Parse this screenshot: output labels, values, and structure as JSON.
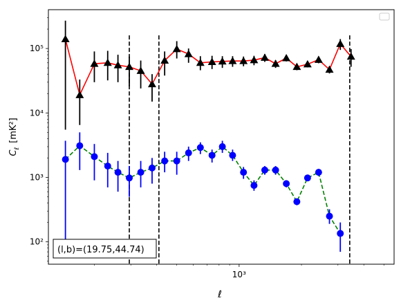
{
  "chart_data": {
    "type": "scatter",
    "xlabel": "ℓ",
    "ylabel_main": "C",
    "ylabel_sub": "ℓ",
    "ylabel_unit": "[mK²]",
    "x_scale": "log",
    "y_scale": "log",
    "xlim": [
      120,
      5600
    ],
    "ylim": [
      45,
      400000
    ],
    "x_ticks": [
      {
        "value": 1000,
        "label": "10³"
      }
    ],
    "y_ticks": [
      {
        "value": 100,
        "label": "10²"
      },
      {
        "value": 1000,
        "label": "10³"
      },
      {
        "value": 10000,
        "label": "10⁴"
      },
      {
        "value": 100000,
        "label": "10⁵"
      }
    ],
    "vlines": [
      295,
      410,
      3420
    ],
    "annotation": "(l,b)=(19.75,44.74)",
    "legend": "top-right",
    "series": [
      {
        "color": "#ff0000",
        "marker": "triangle",
        "marker_color": "#000000",
        "errorbar_color": "#000000",
        "line_style": "solid",
        "points": [
          {
            "x": 145,
            "y": 140000,
            "lo": 5500,
            "hi": 270000
          },
          {
            "x": 170,
            "y": 19000,
            "lo": 6500,
            "hi": 33000
          },
          {
            "x": 200,
            "y": 58000,
            "lo": 30000,
            "hi": 90000
          },
          {
            "x": 232,
            "y": 60000,
            "lo": 32000,
            "hi": 92000
          },
          {
            "x": 260,
            "y": 55000,
            "lo": 30000,
            "hi": 80000
          },
          {
            "x": 295,
            "y": 52000,
            "lo": 26000,
            "hi": 75000
          },
          {
            "x": 335,
            "y": 45000,
            "lo": 24000,
            "hi": 65000
          },
          {
            "x": 380,
            "y": 28000,
            "lo": 15000,
            "hi": 40000
          },
          {
            "x": 437,
            "y": 65000,
            "lo": 38000,
            "hi": 90000
          },
          {
            "x": 500,
            "y": 98000,
            "lo": 70000,
            "hi": 130000
          },
          {
            "x": 570,
            "y": 82000,
            "lo": 60000,
            "hi": 100000
          },
          {
            "x": 650,
            "y": 60000,
            "lo": 46000,
            "hi": 76000
          },
          {
            "x": 740,
            "y": 62000,
            "lo": 48000,
            "hi": 77000
          },
          {
            "x": 830,
            "y": 63000,
            "lo": 50000,
            "hi": 76000
          },
          {
            "x": 930,
            "y": 64000,
            "lo": 52000,
            "hi": 76000
          },
          {
            "x": 1050,
            "y": 64000,
            "lo": 53000,
            "hi": 75000
          },
          {
            "x": 1180,
            "y": 66000,
            "lo": 55000,
            "hi": 77000
          },
          {
            "x": 1330,
            "y": 72000,
            "lo": 62000,
            "hi": 82000
          },
          {
            "x": 1500,
            "y": 58000,
            "lo": 50000,
            "hi": 66000
          },
          {
            "x": 1690,
            "y": 71000,
            "lo": 63000,
            "hi": 79000
          },
          {
            "x": 1900,
            "y": 52000,
            "lo": 46000,
            "hi": 58000
          },
          {
            "x": 2140,
            "y": 57000,
            "lo": 51000,
            "hi": 63000
          },
          {
            "x": 2420,
            "y": 67000,
            "lo": 59000,
            "hi": 75000
          },
          {
            "x": 2730,
            "y": 47000,
            "lo": 41000,
            "hi": 53000
          },
          {
            "x": 3080,
            "y": 118000,
            "lo": 95000,
            "hi": 140000
          },
          {
            "x": 3470,
            "y": 75000,
            "lo": 52000,
            "hi": 98000
          }
        ]
      },
      {
        "color": "#008000",
        "marker": "circle",
        "marker_color": "#0000ff",
        "errorbar_color": "#0000ff",
        "line_style": "dashed",
        "points": [
          {
            "x": 145,
            "y": 1900,
            "lo": 100,
            "hi": 3700
          },
          {
            "x": 170,
            "y": 3100,
            "lo": 1300,
            "hi": 5000
          },
          {
            "x": 200,
            "y": 2100,
            "lo": 900,
            "hi": 3300
          },
          {
            "x": 232,
            "y": 1500,
            "lo": 700,
            "hi": 2400
          },
          {
            "x": 260,
            "y": 1200,
            "lo": 600,
            "hi": 1800
          },
          {
            "x": 295,
            "y": 980,
            "lo": 500,
            "hi": 1500
          },
          {
            "x": 335,
            "y": 1200,
            "lo": 700,
            "hi": 1800
          },
          {
            "x": 380,
            "y": 1400,
            "lo": 800,
            "hi": 2000
          },
          {
            "x": 437,
            "y": 1800,
            "lo": 1200,
            "hi": 2500
          },
          {
            "x": 500,
            "y": 1800,
            "lo": 1100,
            "hi": 2500
          },
          {
            "x": 570,
            "y": 2400,
            "lo": 1800,
            "hi": 3000
          },
          {
            "x": 650,
            "y": 2900,
            "lo": 2300,
            "hi": 3500
          },
          {
            "x": 740,
            "y": 2200,
            "lo": 1700,
            "hi": 2700
          },
          {
            "x": 830,
            "y": 3000,
            "lo": 2400,
            "hi": 3700
          },
          {
            "x": 930,
            "y": 2200,
            "lo": 1800,
            "hi": 2700
          },
          {
            "x": 1050,
            "y": 1200,
            "lo": 950,
            "hi": 1450
          },
          {
            "x": 1180,
            "y": 750,
            "lo": 620,
            "hi": 900
          },
          {
            "x": 1330,
            "y": 1300,
            "lo": 1100,
            "hi": 1500
          },
          {
            "x": 1500,
            "y": 1300,
            "lo": 1100,
            "hi": 1500
          },
          {
            "x": 1690,
            "y": 800,
            "lo": 700,
            "hi": 900
          },
          {
            "x": 1900,
            "y": 420,
            "lo": 370,
            "hi": 470
          },
          {
            "x": 2140,
            "y": 980,
            "lo": 880,
            "hi": 1080
          },
          {
            "x": 2420,
            "y": 1200,
            "lo": 1050,
            "hi": 1350
          },
          {
            "x": 2730,
            "y": 250,
            "lo": 190,
            "hi": 320
          },
          {
            "x": 3080,
            "y": 135,
            "lo": 70,
            "hi": 200
          }
        ]
      }
    ]
  }
}
